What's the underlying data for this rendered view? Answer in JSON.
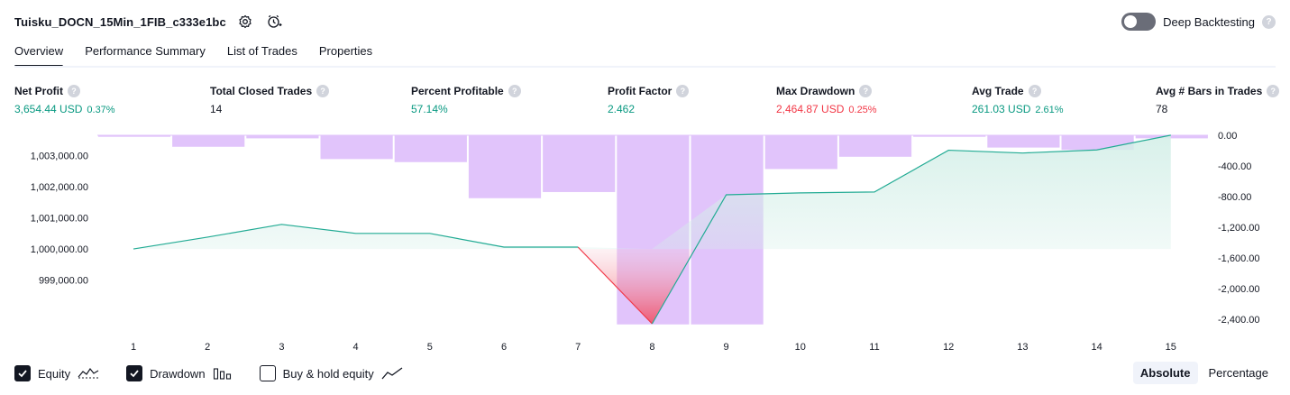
{
  "header": {
    "title": "Tuisku_DOCN_15Min_1FIB_c333e1bc",
    "deep_backtesting_label": "Deep Backtesting",
    "help_glyph": "?"
  },
  "tabs": [
    {
      "label": "Overview",
      "active": true
    },
    {
      "label": "Performance Summary",
      "active": false
    },
    {
      "label": "List of Trades",
      "active": false
    },
    {
      "label": "Properties",
      "active": false
    }
  ],
  "stats": {
    "net_profit": {
      "label": "Net Profit",
      "value": "3,654.44 USD",
      "sub": "0.37%"
    },
    "total_closed_trades": {
      "label": "Total Closed Trades",
      "value": "14"
    },
    "percent_profitable": {
      "label": "Percent Profitable",
      "value": "57.14%"
    },
    "profit_factor": {
      "label": "Profit Factor",
      "value": "2.462"
    },
    "max_drawdown": {
      "label": "Max Drawdown",
      "value": "2,464.87 USD",
      "sub": "0.25%"
    },
    "avg_trade": {
      "label": "Avg Trade",
      "value": "261.03 USD",
      "sub": "2.61%"
    },
    "avg_bars": {
      "label": "Avg # Bars in Trades",
      "value": "78"
    }
  },
  "colors": {
    "positive": "#089981",
    "negative": "#f23645",
    "drawdown_bar": "#e1c4fb",
    "equity_line": "#22ab94",
    "equity_fill": "#d4efe8",
    "loss_line": "#f23645",
    "loss_fill": "#f7c9d4"
  },
  "chart_data": {
    "type": "line",
    "x": [
      1,
      2,
      3,
      4,
      5,
      6,
      7,
      8,
      9,
      10,
      11,
      12,
      13,
      14,
      15
    ],
    "x_ticks": [
      "1",
      "2",
      "3",
      "4",
      "5",
      "6",
      "7",
      "8",
      "9",
      "10",
      "11",
      "12",
      "13",
      "14",
      "15"
    ],
    "series": [
      {
        "name": "Equity",
        "axis": "left",
        "values": [
          1000000,
          1000380,
          1000790,
          1000500,
          1000500,
          1000060,
          1000060,
          997600,
          1001740,
          1001800,
          1001830,
          1003170,
          1003080,
          1003180,
          1003654
        ]
      },
      {
        "name": "Drawdown",
        "axis": "right",
        "type": "bar",
        "values": [
          -20,
          -150,
          -40,
          -310,
          -350,
          -820,
          -740,
          -2465,
          -2465,
          -440,
          -280,
          -20,
          -160,
          -190,
          -40
        ]
      }
    ],
    "left_axis": {
      "ticks": [
        "1,003,000.00",
        "1,002,000.00",
        "1,001,000.00",
        "1,000,000.00",
        "999,000.00"
      ],
      "tick_values": [
        1003000,
        1002000,
        1001000,
        1000000,
        999000
      ],
      "range": [
        997600,
        1003650
      ]
    },
    "right_axis": {
      "ticks": [
        "0.00",
        "-400.00",
        "-800.00",
        "-1,200.00",
        "-1,600.00",
        "-2,000.00",
        "-2,400.00"
      ],
      "tick_values": [
        0,
        -400,
        -800,
        -1200,
        -1600,
        -2000,
        -2400
      ],
      "range": [
        -2480,
        0
      ]
    },
    "baseline": 1000000,
    "grid": false
  },
  "legend": {
    "equity_label": "Equity",
    "drawdown_label": "Drawdown",
    "buy_hold_label": "Buy & hold equity",
    "equity_checked": true,
    "drawdown_checked": true,
    "buy_hold_checked": false
  },
  "mode": {
    "absolute_label": "Absolute",
    "percentage_label": "Percentage",
    "active": "absolute"
  }
}
